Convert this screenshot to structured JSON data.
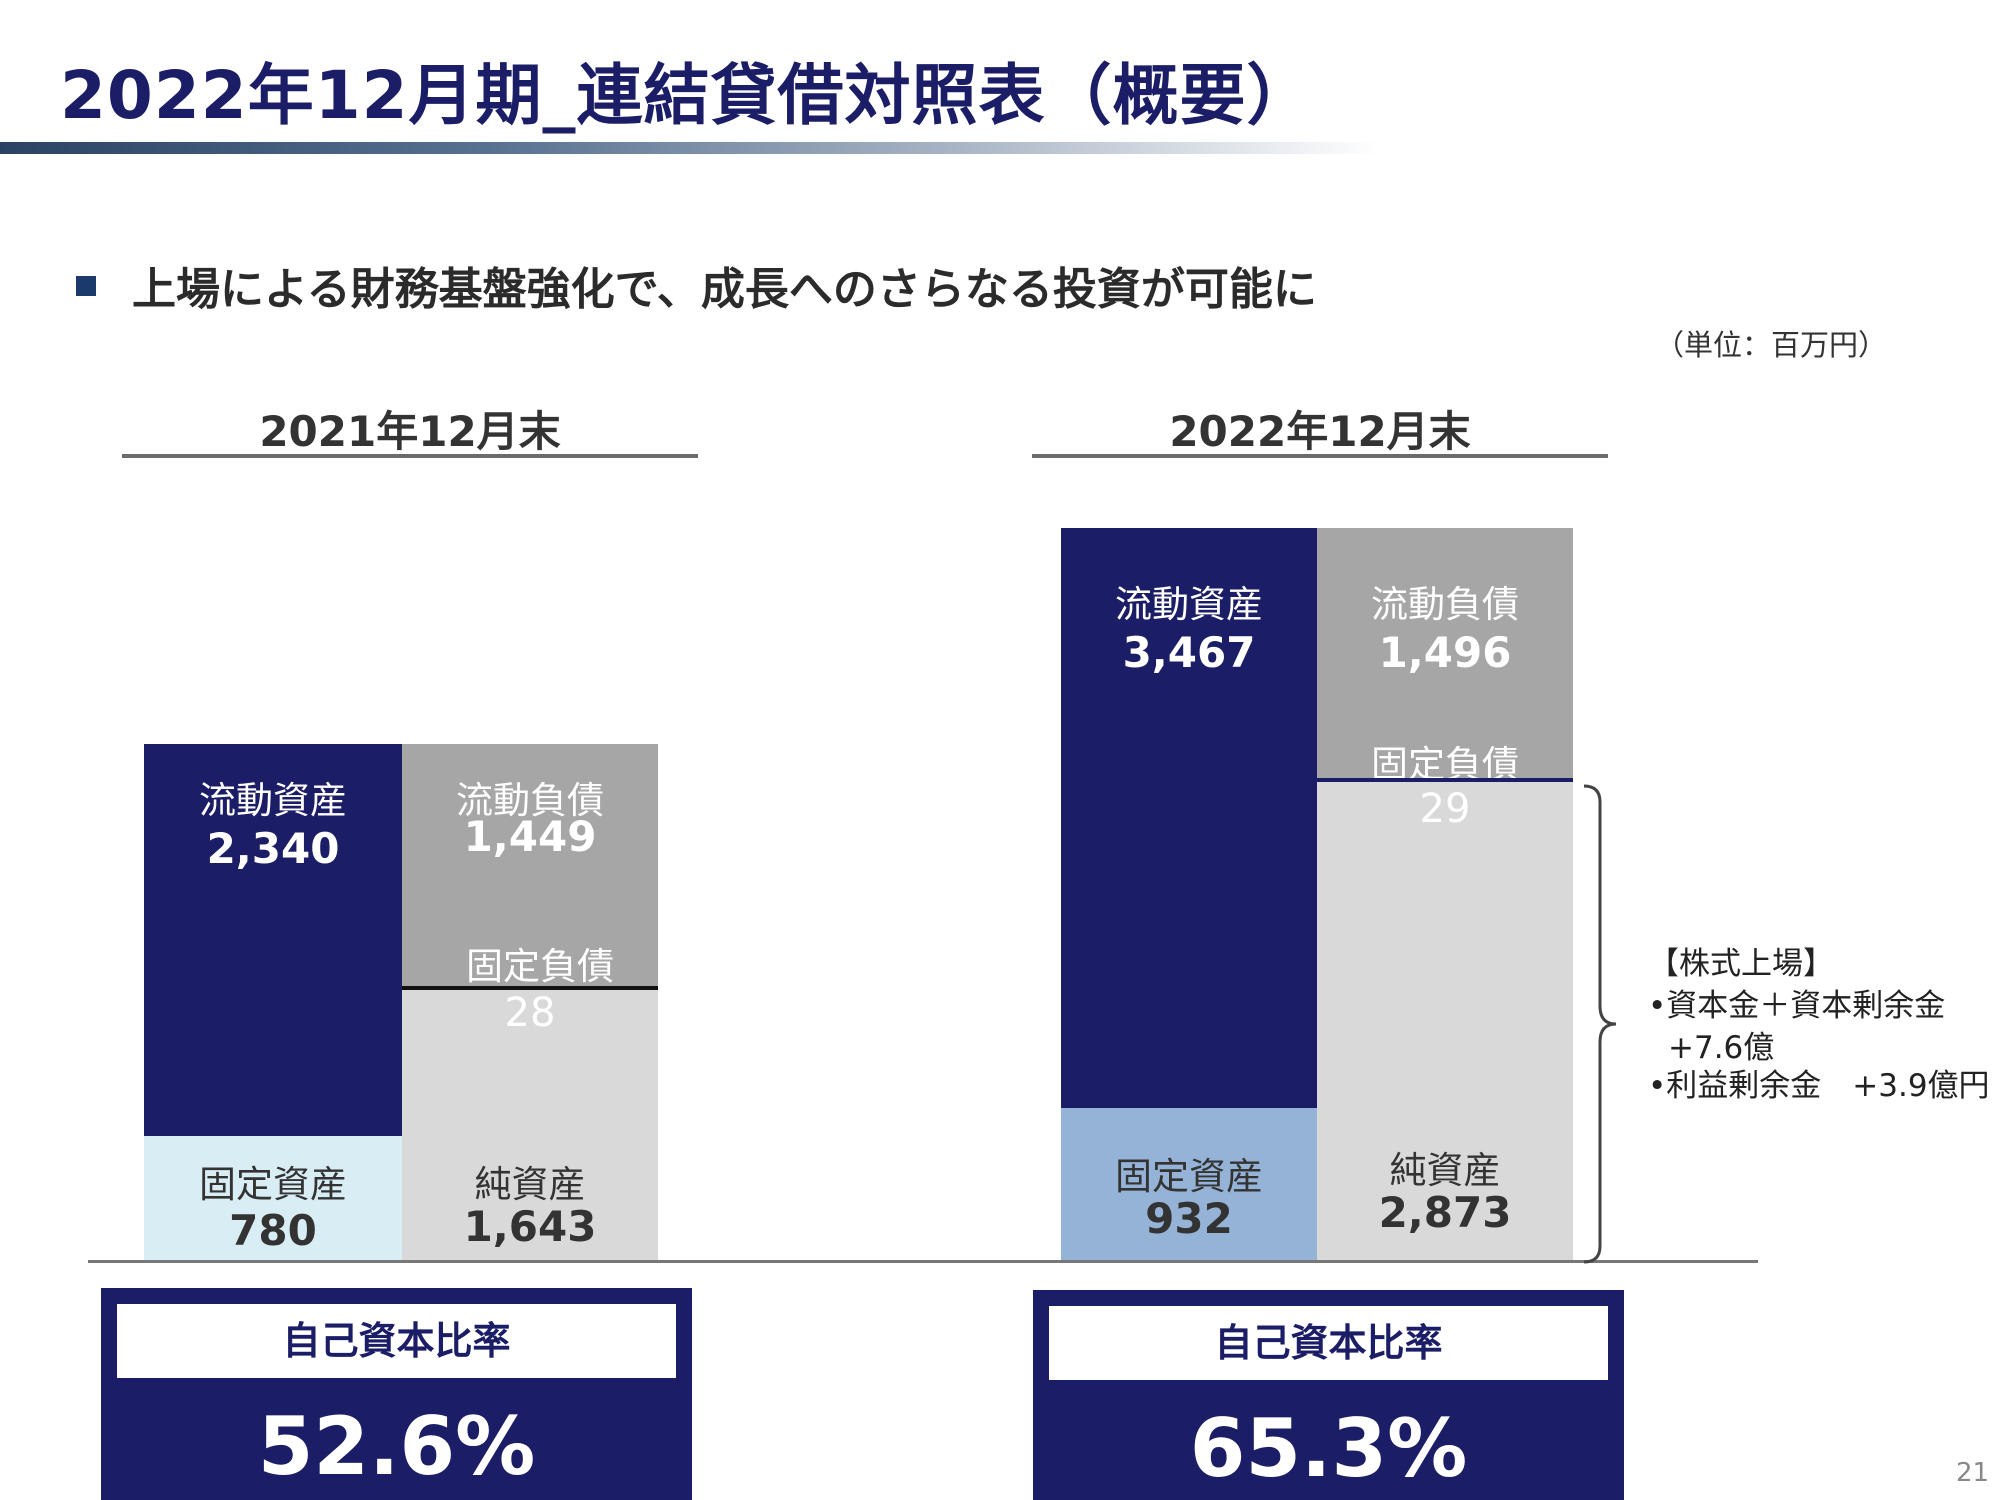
{
  "title": "2022年12月期_連結貸借対照表（概要）",
  "headline": "上場による財務基盤強化で、成長へのさらなる投資が可能に",
  "unit_note": "（単位：百万円）",
  "colors": {
    "current_assets": "#1b1d66",
    "fixed_assets_2021": "#d9edf5",
    "fixed_assets_2022": "#95b3d7",
    "current_liabilities": "#a6a6a6",
    "net_assets": "#d9d9d9",
    "title": "#1b1d66"
  },
  "chart_data": {
    "type": "bar",
    "subtype": "stacked balance sheet",
    "unit": "百万円",
    "periods": [
      {
        "label": "2021年12月末",
        "assets": [
          {
            "label": "流動資産",
            "value": 2340,
            "display": "2,340"
          },
          {
            "label": "固定資産",
            "value": 780,
            "display": "780"
          }
        ],
        "liabilities_and_equity": [
          {
            "label": "流動負債",
            "value": 1449,
            "display": "1,449"
          },
          {
            "label": "固定負債",
            "value": 28,
            "display": "28"
          },
          {
            "label": "純資産",
            "value": 1643,
            "display": "1,643"
          }
        ],
        "ratio_label": "自己資本比率",
        "ratio": "52.6%"
      },
      {
        "label": "2022年12月末",
        "assets": [
          {
            "label": "流動資産",
            "value": 3467,
            "display": "3,467"
          },
          {
            "label": "固定資産",
            "value": 932,
            "display": "932"
          }
        ],
        "liabilities_and_equity": [
          {
            "label": "流動負債",
            "value": 1496,
            "display": "1,496"
          },
          {
            "label": "固定負債",
            "value": 29,
            "display": "29"
          },
          {
            "label": "純資産",
            "value": 2873,
            "display": "2,873"
          }
        ],
        "ratio_label": "自己資本比率",
        "ratio": "65.3%"
      }
    ],
    "annotation": {
      "heading": "【株式上場】",
      "lines": [
        "•資本金＋資本剰余金",
        "+7.6億",
        "•利益剰余金　+3.9億円"
      ]
    }
  },
  "page_number": "21"
}
